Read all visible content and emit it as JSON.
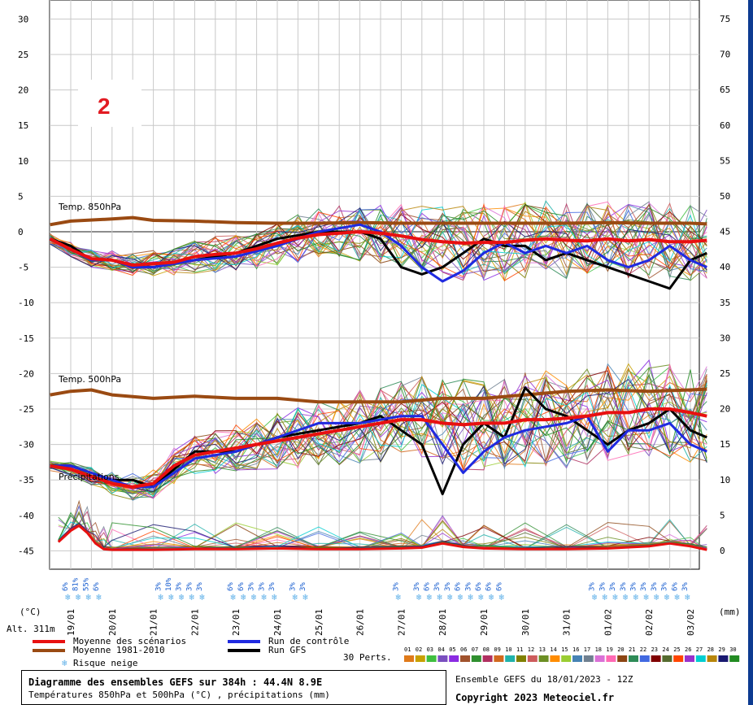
{
  "chart_data": {
    "type": "line",
    "annotation_number": "2",
    "left_axis_unit": "(°C)",
    "right_axis_unit": "(mm)",
    "altitude_label": "Alt. 311m",
    "left_ticks": [
      30,
      25,
      20,
      15,
      10,
      5,
      0,
      -5,
      -10,
      -15,
      -20,
      -25,
      -30,
      -35,
      -40,
      -45
    ],
    "right_ticks": [
      75,
      70,
      65,
      60,
      55,
      50,
      45,
      40,
      35,
      30,
      25,
      20,
      15,
      10,
      5,
      0
    ],
    "ylim_left": [
      -45,
      30
    ],
    "ylim_right": [
      0,
      75
    ],
    "date_labels": [
      "19/01",
      "20/01",
      "21/01",
      "22/01",
      "23/01",
      "24/01",
      "25/01",
      "26/01",
      "27/01",
      "28/01",
      "29/01",
      "30/01",
      "31/01",
      "01/02",
      "02/02",
      "03/02"
    ],
    "section_labels": {
      "t850": "Temp. 850hPa",
      "t500": "Temp. 500hPa",
      "precip": "Précipitations"
    },
    "snow_risk": [
      {
        "day": 0.0,
        "pct": "6%"
      },
      {
        "day": 0.25,
        "pct": "81%"
      },
      {
        "day": 0.5,
        "pct": "55%"
      },
      {
        "day": 0.75,
        "pct": "6%"
      },
      {
        "day": 2.25,
        "pct": "3%"
      },
      {
        "day": 2.5,
        "pct": "10%"
      },
      {
        "day": 2.75,
        "pct": "3%"
      },
      {
        "day": 3.0,
        "pct": "3%"
      },
      {
        "day": 3.25,
        "pct": "3%"
      },
      {
        "day": 4.0,
        "pct": "6%"
      },
      {
        "day": 4.25,
        "pct": "6%"
      },
      {
        "day": 4.5,
        "pct": "3%"
      },
      {
        "day": 4.75,
        "pct": "3%"
      },
      {
        "day": 5.0,
        "pct": "3%"
      },
      {
        "day": 5.5,
        "pct": "3%"
      },
      {
        "day": 5.75,
        "pct": "3%"
      },
      {
        "day": 8.0,
        "pct": "3%"
      },
      {
        "day": 8.5,
        "pct": "3%"
      },
      {
        "day": 8.75,
        "pct": "6%"
      },
      {
        "day": 9.0,
        "pct": "3%"
      },
      {
        "day": 9.25,
        "pct": "3%"
      },
      {
        "day": 9.5,
        "pct": "6%"
      },
      {
        "day": 9.75,
        "pct": "3%"
      },
      {
        "day": 10.0,
        "pct": "6%"
      },
      {
        "day": 10.25,
        "pct": "6%"
      },
      {
        "day": 10.5,
        "pct": "6%"
      },
      {
        "day": 12.75,
        "pct": "3%"
      },
      {
        "day": 13.0,
        "pct": "3%"
      },
      {
        "day": 13.25,
        "pct": "3%"
      },
      {
        "day": 13.5,
        "pct": "3%"
      },
      {
        "day": 13.75,
        "pct": "3%"
      },
      {
        "day": 14.0,
        "pct": "3%"
      },
      {
        "day": 14.25,
        "pct": "3%"
      },
      {
        "day": 14.5,
        "pct": "3%"
      },
      {
        "day": 14.75,
        "pct": "6%"
      },
      {
        "day": 15.0,
        "pct": "3%"
      }
    ],
    "series": [
      {
        "name": "Moyenne des scénarios",
        "color": "#e81010",
        "t850": [
          [
            -0.5,
            -1
          ],
          [
            0,
            -2.5
          ],
          [
            0.5,
            -3.8
          ],
          [
            1,
            -4
          ],
          [
            1.5,
            -4.7
          ],
          [
            2,
            -4.5
          ],
          [
            2.5,
            -4.3
          ],
          [
            3,
            -3.5
          ],
          [
            3.5,
            -3.2
          ],
          [
            4,
            -3
          ],
          [
            4.5,
            -2.4
          ],
          [
            5,
            -1.6
          ],
          [
            5.5,
            -0.9
          ],
          [
            6,
            -0.4
          ],
          [
            6.5,
            -0.2
          ],
          [
            7,
            0
          ],
          [
            7.5,
            -0.2
          ],
          [
            8,
            -0.6
          ],
          [
            8.5,
            -1.1
          ],
          [
            9,
            -1.4
          ],
          [
            9.5,
            -1.6
          ],
          [
            10,
            -1.5
          ],
          [
            10.5,
            -1.5
          ],
          [
            11,
            -1.2
          ],
          [
            11.5,
            -1
          ],
          [
            12,
            -1.2
          ],
          [
            12.5,
            -1.3
          ],
          [
            13,
            -1
          ],
          [
            13.5,
            -1.3
          ],
          [
            14,
            -1.1
          ],
          [
            14.5,
            -1.4
          ],
          [
            15,
            -1.4
          ],
          [
            15.4,
            -1.2
          ]
        ],
        "t500": [
          [
            -0.5,
            -33
          ],
          [
            0,
            -33.5
          ],
          [
            0.5,
            -34.5
          ],
          [
            1,
            -35.5
          ],
          [
            1.5,
            -36
          ],
          [
            2,
            -35.5
          ],
          [
            2.5,
            -33
          ],
          [
            3,
            -31.5
          ],
          [
            3.5,
            -31
          ],
          [
            4,
            -30.5
          ],
          [
            4.5,
            -30
          ],
          [
            5,
            -29.5
          ],
          [
            5.5,
            -29
          ],
          [
            6,
            -28.5
          ],
          [
            6.5,
            -28
          ],
          [
            7,
            -27.5
          ],
          [
            7.5,
            -27
          ],
          [
            8,
            -26.5
          ],
          [
            8.5,
            -26.5
          ],
          [
            9,
            -27
          ],
          [
            9.5,
            -27.2
          ],
          [
            10,
            -27
          ],
          [
            10.5,
            -27
          ],
          [
            11,
            -26.5
          ],
          [
            11.5,
            -26.5
          ],
          [
            12,
            -26.3
          ],
          [
            12.5,
            -26
          ],
          [
            13,
            -25.5
          ],
          [
            13.5,
            -25.5
          ],
          [
            14,
            -25
          ],
          [
            14.5,
            -25
          ],
          [
            15,
            -25.5
          ],
          [
            15.4,
            -26
          ]
        ],
        "precip": [
          [
            -0.3,
            1.2
          ],
          [
            0,
            2.8
          ],
          [
            0.2,
            3.5
          ],
          [
            0.4,
            2.5
          ],
          [
            0.6,
            1
          ],
          [
            0.8,
            0.2
          ],
          [
            1,
            0.1
          ],
          [
            2,
            0.1
          ],
          [
            3,
            0.2
          ],
          [
            4,
            0.2
          ],
          [
            5,
            0.3
          ],
          [
            6,
            0.2
          ],
          [
            7,
            0.2
          ],
          [
            8,
            0.3
          ],
          [
            8.5,
            0.4
          ],
          [
            9,
            1
          ],
          [
            9.5,
            0.5
          ],
          [
            10,
            0.3
          ],
          [
            11,
            0.2
          ],
          [
            12,
            0.2
          ],
          [
            13,
            0.3
          ],
          [
            14,
            0.6
          ],
          [
            14.5,
            1
          ],
          [
            15,
            0.6
          ],
          [
            15.4,
            0.1
          ]
        ]
      },
      {
        "name": "Moyenne 1981-2010",
        "color": "#9a4a12",
        "t850": [
          [
            -0.5,
            1
          ],
          [
            0,
            1.5
          ],
          [
            1,
            1.8
          ],
          [
            1.5,
            2
          ],
          [
            2,
            1.6
          ],
          [
            3,
            1.5
          ],
          [
            4,
            1.3
          ],
          [
            5,
            1.2
          ],
          [
            6,
            1.2
          ],
          [
            7,
            1.3
          ],
          [
            8,
            1.2
          ],
          [
            9,
            1.2
          ],
          [
            10,
            1.2
          ],
          [
            11,
            1.2
          ],
          [
            12,
            1.2
          ],
          [
            13,
            1.3
          ],
          [
            14,
            1.2
          ],
          [
            15,
            1.2
          ],
          [
            15.4,
            1.1
          ]
        ],
        "t500": [
          [
            -0.5,
            -23
          ],
          [
            0,
            -22.5
          ],
          [
            0.5,
            -22.3
          ],
          [
            1,
            -23
          ],
          [
            2,
            -23.5
          ],
          [
            3,
            -23.2
          ],
          [
            4,
            -23.5
          ],
          [
            5,
            -23.5
          ],
          [
            6,
            -24
          ],
          [
            7,
            -24
          ],
          [
            8,
            -24
          ],
          [
            9,
            -23.5
          ],
          [
            10,
            -23.5
          ],
          [
            11,
            -23
          ],
          [
            12,
            -22.5
          ],
          [
            13,
            -22.3
          ],
          [
            14,
            -22.5
          ],
          [
            15,
            -22.3
          ],
          [
            15.4,
            -22.2
          ]
        ]
      },
      {
        "name": "Run de contrôle",
        "color": "#1f2ae0",
        "t850": [
          [
            -0.5,
            -1
          ],
          [
            0,
            -2.5
          ],
          [
            0.5,
            -4
          ],
          [
            1,
            -4
          ],
          [
            1.5,
            -5
          ],
          [
            2,
            -5
          ],
          [
            3,
            -4
          ],
          [
            4,
            -3.5
          ],
          [
            5,
            -2
          ],
          [
            6,
            0
          ],
          [
            7,
            1
          ],
          [
            7.5,
            0
          ],
          [
            8,
            -2
          ],
          [
            8.5,
            -5
          ],
          [
            9,
            -7
          ],
          [
            9.5,
            -5.5
          ],
          [
            10,
            -3
          ],
          [
            10.5,
            -1.5
          ],
          [
            11,
            -3
          ],
          [
            11.5,
            -2
          ],
          [
            12,
            -3
          ],
          [
            12.5,
            -2
          ],
          [
            13,
            -4
          ],
          [
            13.5,
            -5
          ],
          [
            14,
            -4
          ],
          [
            14.5,
            -2
          ],
          [
            15,
            -4
          ],
          [
            15.4,
            -5
          ]
        ],
        "t500": [
          [
            -0.5,
            -33
          ],
          [
            0,
            -33
          ],
          [
            0.5,
            -34
          ],
          [
            1,
            -35
          ],
          [
            1.5,
            -36
          ],
          [
            2,
            -36
          ],
          [
            3,
            -32
          ],
          [
            4,
            -31
          ],
          [
            5,
            -29
          ],
          [
            6,
            -27
          ],
          [
            7,
            -27
          ],
          [
            8,
            -26
          ],
          [
            8.5,
            -26
          ],
          [
            9,
            -30
          ],
          [
            9.5,
            -34
          ],
          [
            10,
            -31
          ],
          [
            10.5,
            -29
          ],
          [
            11,
            -28
          ],
          [
            12,
            -27
          ],
          [
            12.5,
            -26
          ],
          [
            13,
            -31
          ],
          [
            13.5,
            -28
          ],
          [
            14,
            -28
          ],
          [
            14.5,
            -27
          ],
          [
            15,
            -30
          ],
          [
            15.4,
            -31
          ]
        ]
      },
      {
        "name": "Run GFS",
        "color": "#000000",
        "t850": [
          [
            -0.5,
            -1
          ],
          [
            0,
            -2
          ],
          [
            0.5,
            -4
          ],
          [
            1,
            -4
          ],
          [
            1.5,
            -5
          ],
          [
            2,
            -5
          ],
          [
            3,
            -4
          ],
          [
            4,
            -3
          ],
          [
            5,
            -1
          ],
          [
            6,
            0
          ],
          [
            7,
            0
          ],
          [
            7.5,
            -1
          ],
          [
            8,
            -5
          ],
          [
            8.5,
            -6
          ],
          [
            9,
            -5
          ],
          [
            9.5,
            -3
          ],
          [
            10,
            -1
          ],
          [
            10.5,
            -2
          ],
          [
            11,
            -2
          ],
          [
            11.5,
            -4
          ],
          [
            12,
            -3
          ],
          [
            12.5,
            -4
          ],
          [
            13,
            -5
          ],
          [
            13.5,
            -6
          ],
          [
            14,
            -7
          ],
          [
            14.5,
            -8
          ],
          [
            15,
            -4
          ],
          [
            15.4,
            -3
          ]
        ],
        "t500": [
          [
            -0.5,
            -33
          ],
          [
            0,
            -33
          ],
          [
            0.5,
            -34
          ],
          [
            1,
            -35
          ],
          [
            1.5,
            -35
          ],
          [
            2,
            -36
          ],
          [
            3,
            -31
          ],
          [
            4,
            -31
          ],
          [
            5,
            -29
          ],
          [
            6,
            -28
          ],
          [
            7,
            -27
          ],
          [
            7.5,
            -26
          ],
          [
            8,
            -28
          ],
          [
            8.5,
            -30
          ],
          [
            9,
            -37
          ],
          [
            9.5,
            -30
          ],
          [
            10,
            -27
          ],
          [
            10.5,
            -29
          ],
          [
            11,
            -22
          ],
          [
            11.5,
            -25
          ],
          [
            12,
            -26
          ],
          [
            12.5,
            -28
          ],
          [
            13,
            -30
          ],
          [
            13.5,
            -28
          ],
          [
            14,
            -27
          ],
          [
            14.5,
            -25
          ],
          [
            15,
            -28
          ],
          [
            15.4,
            -29
          ]
        ]
      }
    ],
    "perturbations_label": "30 Perts.",
    "perturbations_count": 30,
    "perturbation_numbers": [
      "01",
      "02",
      "03",
      "04",
      "05",
      "06",
      "07",
      "08",
      "09",
      "10",
      "11",
      "12",
      "13",
      "14",
      "15",
      "16",
      "17",
      "18",
      "19",
      "20",
      "21",
      "22",
      "23",
      "24",
      "25",
      "26",
      "27",
      "28",
      "29",
      "30"
    ],
    "perturbation_colors": [
      "#e07a1a",
      "#c8a000",
      "#3fbf3f",
      "#7a4fbf",
      "#8a2be2",
      "#a0522d",
      "#2f8f2f",
      "#b03060",
      "#d2691e",
      "#20b2aa",
      "#808000",
      "#cd5c5c",
      "#6b8e23",
      "#ff8c00",
      "#9acd32",
      "#4682b4",
      "#708090",
      "#da70d6",
      "#ff69b4",
      "#8b4513",
      "#2e8b57",
      "#4169e1",
      "#800000",
      "#556b2f",
      "#ff4500",
      "#9932cc",
      "#00ced1",
      "#b8860b",
      "#191970",
      "#228b22"
    ],
    "legend": [
      {
        "label": "Moyenne des scénarios",
        "color": "#e81010"
      },
      {
        "label": "Moyenne 1981-2010",
        "color": "#9a4a12"
      },
      {
        "label": "Risque neige",
        "color": "#5fb0e8",
        "icon": "snowflake"
      },
      {
        "label": "Run de contrôle",
        "color": "#1f2ae0"
      },
      {
        "label": "Run GFS",
        "color": "#000000"
      }
    ],
    "footer": {
      "title": "Diagramme des ensembles GEFS sur 384h : 44.4N 8.9E",
      "subtitle": "Températures 850hPa et 500hPa (°C) , précipitations (mm)",
      "run_info": "Ensemble GEFS du 18/01/2023 - 12Z",
      "copyright": "Copyright 2023 Meteociel.fr"
    }
  }
}
